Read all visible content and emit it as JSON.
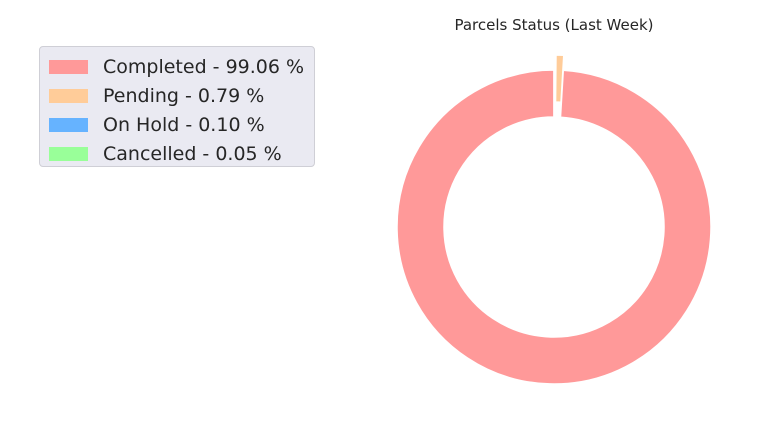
{
  "chart_data": {
    "type": "pie",
    "variant": "donut",
    "title": "Parcels Status (Last Week)",
    "slices": [
      {
        "label": "Completed - 99.06 %",
        "name": "Completed",
        "value": 99.06,
        "color": "#ff9999"
      },
      {
        "label": "Pending - 0.79 %",
        "name": "Pending",
        "value": 0.79,
        "color": "#ffcc99",
        "exploded": true
      },
      {
        "label": "On Hold - 0.10 %",
        "name": "On Hold",
        "value": 0.1,
        "color": "#66b3ff"
      },
      {
        "label": "Cancelled - 0.05 %",
        "name": "Cancelled",
        "value": 0.05,
        "color": "#99ff99"
      }
    ],
    "legend_position": "top-left",
    "slice_edge_color": "#ffffff"
  }
}
